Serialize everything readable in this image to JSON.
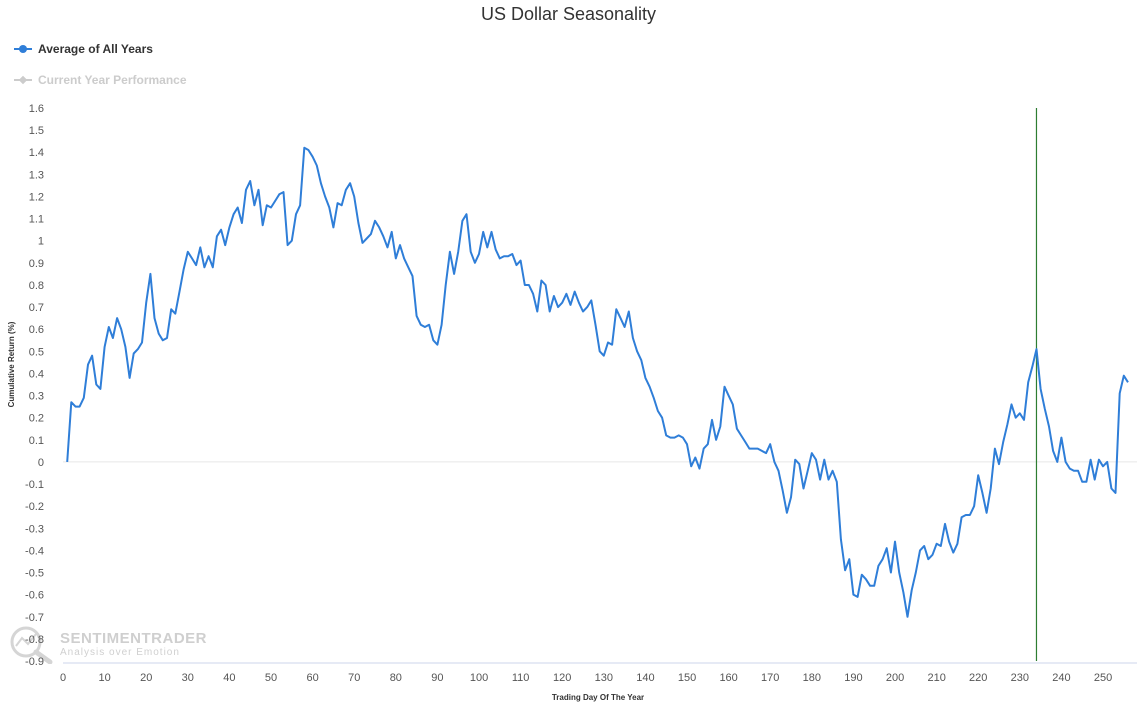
{
  "chart_data": {
    "type": "line",
    "title": "US Dollar Seasonality",
    "xlabel": "Trading Day Of The Year",
    "ylabel": "Cumulative Return (%)",
    "xlim": [
      0,
      256
    ],
    "ylim": [
      -0.9,
      1.6
    ],
    "x_ticks": [
      0,
      10,
      20,
      30,
      40,
      50,
      60,
      70,
      80,
      90,
      100,
      110,
      120,
      130,
      140,
      150,
      160,
      170,
      180,
      190,
      200,
      210,
      220,
      230,
      240,
      250
    ],
    "y_ticks": [
      -0.9,
      -0.8,
      -0.7,
      -0.6,
      -0.5,
      -0.4,
      -0.3,
      -0.2,
      -0.1,
      0,
      0.1,
      0.2,
      0.3,
      0.4,
      0.5,
      0.6,
      0.7,
      0.8,
      0.9,
      1,
      1.1,
      1.2,
      1.3,
      1.4,
      1.5,
      1.6
    ],
    "y_tick_labels": [
      "-0.9",
      "-0.8",
      "-0.7",
      "-0.6",
      "-0.5",
      "-0.4",
      "-0.3",
      "-0.2",
      "-0.1",
      "0",
      "0.1",
      "0.2",
      "0.3",
      "0.4",
      "0.5",
      "0.6",
      "0.7",
      "0.8",
      "0.9",
      "1",
      "1.1",
      "1.2",
      "1.3",
      "1.4",
      "1.5",
      "1.6"
    ],
    "grid": false,
    "legend_position": "top-left",
    "vertical_marker_x": 234,
    "series": [
      {
        "name": "Average of All Years",
        "color": "#2f7ed8",
        "points": [
          [
            1,
            0.0
          ],
          [
            2,
            0.27
          ],
          [
            3,
            0.25
          ],
          [
            4,
            0.25
          ],
          [
            5,
            0.29
          ],
          [
            6,
            0.44
          ],
          [
            7,
            0.48
          ],
          [
            8,
            0.35
          ],
          [
            9,
            0.33
          ],
          [
            10,
            0.52
          ],
          [
            11,
            0.61
          ],
          [
            12,
            0.56
          ],
          [
            13,
            0.65
          ],
          [
            14,
            0.6
          ],
          [
            15,
            0.52
          ],
          [
            16,
            0.38
          ],
          [
            17,
            0.49
          ],
          [
            18,
            0.51
          ],
          [
            19,
            0.54
          ],
          [
            20,
            0.72
          ],
          [
            21,
            0.85
          ],
          [
            22,
            0.65
          ],
          [
            23,
            0.58
          ],
          [
            24,
            0.55
          ],
          [
            25,
            0.56
          ],
          [
            26,
            0.69
          ],
          [
            27,
            0.67
          ],
          [
            28,
            0.77
          ],
          [
            29,
            0.87
          ],
          [
            30,
            0.95
          ],
          [
            31,
            0.92
          ],
          [
            32,
            0.89
          ],
          [
            33,
            0.97
          ],
          [
            34,
            0.88
          ],
          [
            35,
            0.93
          ],
          [
            36,
            0.88
          ],
          [
            37,
            1.02
          ],
          [
            38,
            1.05
          ],
          [
            39,
            0.98
          ],
          [
            40,
            1.06
          ],
          [
            41,
            1.12
          ],
          [
            42,
            1.15
          ],
          [
            43,
            1.08
          ],
          [
            44,
            1.23
          ],
          [
            45,
            1.27
          ],
          [
            46,
            1.16
          ],
          [
            47,
            1.23
          ],
          [
            48,
            1.07
          ],
          [
            49,
            1.16
          ],
          [
            50,
            1.15
          ],
          [
            51,
            1.18
          ],
          [
            52,
            1.21
          ],
          [
            53,
            1.22
          ],
          [
            54,
            0.98
          ],
          [
            55,
            1.0
          ],
          [
            56,
            1.12
          ],
          [
            57,
            1.16
          ],
          [
            58,
            1.42
          ],
          [
            59,
            1.41
          ],
          [
            60,
            1.38
          ],
          [
            61,
            1.34
          ],
          [
            62,
            1.26
          ],
          [
            63,
            1.2
          ],
          [
            64,
            1.15
          ],
          [
            65,
            1.06
          ],
          [
            66,
            1.17
          ],
          [
            67,
            1.16
          ],
          [
            68,
            1.23
          ],
          [
            69,
            1.26
          ],
          [
            70,
            1.2
          ],
          [
            71,
            1.08
          ],
          [
            72,
            0.99
          ],
          [
            73,
            1.01
          ],
          [
            74,
            1.03
          ],
          [
            75,
            1.09
          ],
          [
            76,
            1.06
          ],
          [
            77,
            1.02
          ],
          [
            78,
            0.97
          ],
          [
            79,
            1.04
          ],
          [
            80,
            0.92
          ],
          [
            81,
            0.98
          ],
          [
            82,
            0.92
          ],
          [
            83,
            0.88
          ],
          [
            84,
            0.84
          ],
          [
            85,
            0.66
          ],
          [
            86,
            0.62
          ],
          [
            87,
            0.61
          ],
          [
            88,
            0.62
          ],
          [
            89,
            0.55
          ],
          [
            90,
            0.53
          ],
          [
            91,
            0.62
          ],
          [
            92,
            0.8
          ],
          [
            93,
            0.95
          ],
          [
            94,
            0.85
          ],
          [
            95,
            0.95
          ],
          [
            96,
            1.09
          ],
          [
            97,
            1.12
          ],
          [
            98,
            0.95
          ],
          [
            99,
            0.9
          ],
          [
            100,
            0.94
          ],
          [
            101,
            1.04
          ],
          [
            102,
            0.97
          ],
          [
            103,
            1.04
          ],
          [
            104,
            0.96
          ],
          [
            105,
            0.92
          ],
          [
            106,
            0.93
          ],
          [
            107,
            0.93
          ],
          [
            108,
            0.94
          ],
          [
            109,
            0.89
          ],
          [
            110,
            0.91
          ],
          [
            111,
            0.8
          ],
          [
            112,
            0.8
          ],
          [
            113,
            0.76
          ],
          [
            114,
            0.68
          ],
          [
            115,
            0.82
          ],
          [
            116,
            0.8
          ],
          [
            117,
            0.68
          ],
          [
            118,
            0.75
          ],
          [
            119,
            0.7
          ],
          [
            120,
            0.72
          ],
          [
            121,
            0.76
          ],
          [
            122,
            0.71
          ],
          [
            123,
            0.77
          ],
          [
            124,
            0.72
          ],
          [
            125,
            0.68
          ],
          [
            126,
            0.7
          ],
          [
            127,
            0.73
          ],
          [
            128,
            0.62
          ],
          [
            129,
            0.5
          ],
          [
            130,
            0.48
          ],
          [
            131,
            0.54
          ],
          [
            132,
            0.53
          ],
          [
            133,
            0.69
          ],
          [
            134,
            0.65
          ],
          [
            135,
            0.61
          ],
          [
            136,
            0.68
          ],
          [
            137,
            0.56
          ],
          [
            138,
            0.5
          ],
          [
            139,
            0.46
          ],
          [
            140,
            0.38
          ],
          [
            141,
            0.34
          ],
          [
            142,
            0.29
          ],
          [
            143,
            0.23
          ],
          [
            144,
            0.2
          ],
          [
            145,
            0.12
          ],
          [
            146,
            0.11
          ],
          [
            147,
            0.11
          ],
          [
            148,
            0.12
          ],
          [
            149,
            0.11
          ],
          [
            150,
            0.08
          ],
          [
            151,
            -0.02
          ],
          [
            152,
            0.02
          ],
          [
            153,
            -0.03
          ],
          [
            154,
            0.06
          ],
          [
            155,
            0.08
          ],
          [
            156,
            0.19
          ],
          [
            157,
            0.1
          ],
          [
            158,
            0.16
          ],
          [
            159,
            0.34
          ],
          [
            160,
            0.3
          ],
          [
            161,
            0.26
          ],
          [
            162,
            0.15
          ],
          [
            163,
            0.12
          ],
          [
            164,
            0.09
          ],
          [
            165,
            0.06
          ],
          [
            166,
            0.06
          ],
          [
            167,
            0.06
          ],
          [
            168,
            0.05
          ],
          [
            169,
            0.04
          ],
          [
            170,
            0.08
          ],
          [
            171,
            0.0
          ],
          [
            172,
            -0.04
          ],
          [
            173,
            -0.13
          ],
          [
            174,
            -0.23
          ],
          [
            175,
            -0.16
          ],
          [
            176,
            0.01
          ],
          [
            177,
            -0.01
          ],
          [
            178,
            -0.12
          ],
          [
            179,
            -0.04
          ],
          [
            180,
            0.04
          ],
          [
            181,
            0.01
          ],
          [
            182,
            -0.08
          ],
          [
            183,
            0.01
          ],
          [
            184,
            -0.08
          ],
          [
            185,
            -0.04
          ],
          [
            186,
            -0.09
          ],
          [
            187,
            -0.35
          ],
          [
            188,
            -0.49
          ],
          [
            189,
            -0.44
          ],
          [
            190,
            -0.6
          ],
          [
            191,
            -0.61
          ],
          [
            192,
            -0.51
          ],
          [
            193,
            -0.53
          ],
          [
            194,
            -0.56
          ],
          [
            195,
            -0.56
          ],
          [
            196,
            -0.47
          ],
          [
            197,
            -0.44
          ],
          [
            198,
            -0.39
          ],
          [
            199,
            -0.5
          ],
          [
            200,
            -0.36
          ],
          [
            201,
            -0.5
          ],
          [
            202,
            -0.59
          ],
          [
            203,
            -0.7
          ],
          [
            204,
            -0.58
          ],
          [
            205,
            -0.5
          ],
          [
            206,
            -0.4
          ],
          [
            207,
            -0.38
          ],
          [
            208,
            -0.44
          ],
          [
            209,
            -0.42
          ],
          [
            210,
            -0.37
          ],
          [
            211,
            -0.38
          ],
          [
            212,
            -0.28
          ],
          [
            213,
            -0.36
          ],
          [
            214,
            -0.41
          ],
          [
            215,
            -0.37
          ],
          [
            216,
            -0.25
          ],
          [
            217,
            -0.24
          ],
          [
            218,
            -0.24
          ],
          [
            219,
            -0.2
          ],
          [
            220,
            -0.06
          ],
          [
            221,
            -0.14
          ],
          [
            222,
            -0.23
          ],
          [
            223,
            -0.12
          ],
          [
            224,
            0.06
          ],
          [
            225,
            -0.01
          ],
          [
            226,
            0.09
          ],
          [
            227,
            0.17
          ],
          [
            228,
            0.26
          ],
          [
            229,
            0.2
          ],
          [
            230,
            0.22
          ],
          [
            231,
            0.19
          ],
          [
            232,
            0.36
          ],
          [
            233,
            0.43
          ],
          [
            234,
            0.51
          ],
          [
            235,
            0.33
          ],
          [
            236,
            0.24
          ],
          [
            237,
            0.16
          ],
          [
            238,
            0.05
          ],
          [
            239,
            0.0
          ],
          [
            240,
            0.11
          ],
          [
            241,
            0.0
          ],
          [
            242,
            -0.03
          ],
          [
            243,
            -0.04
          ],
          [
            244,
            -0.04
          ],
          [
            245,
            -0.09
          ],
          [
            246,
            -0.09
          ],
          [
            247,
            0.01
          ],
          [
            248,
            -0.08
          ],
          [
            249,
            0.01
          ],
          [
            250,
            -0.02
          ],
          [
            251,
            0.0
          ],
          [
            252,
            -0.12
          ],
          [
            253,
            -0.14
          ],
          [
            254,
            0.31
          ],
          [
            255,
            0.39
          ],
          [
            256,
            0.36
          ]
        ]
      },
      {
        "name": "Current Year Performance",
        "color": "#cccccc",
        "points": []
      }
    ]
  },
  "legend": {
    "item1_label": "Average of All Years",
    "item2_label": "Current Year Performance"
  },
  "watermark": {
    "line1": "SENTIMENTRADER",
    "line2": "Analysis over Emotion"
  }
}
